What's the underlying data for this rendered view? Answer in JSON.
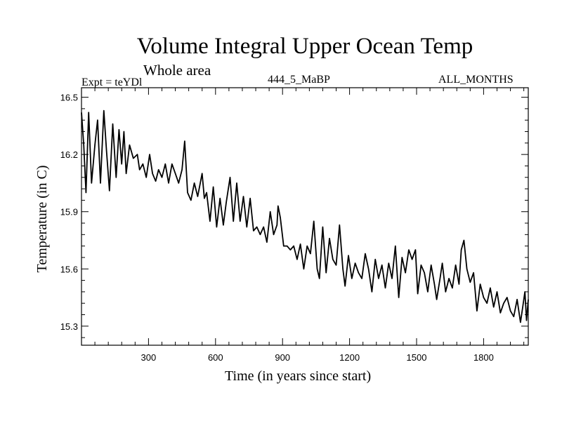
{
  "chart_data": {
    "type": "line",
    "title": "Volume Integral Upper Ocean Temp",
    "subtitle": "Whole area",
    "annotations": {
      "experiment": "Expt = teYDl",
      "run": "444_5_MaBP",
      "months": "ALL_MONTHS"
    },
    "xlabel": "Time (in years since start)",
    "ylabel": "Temperature (in C)",
    "xlim": [
      0,
      2000
    ],
    "ylim": [
      15.2,
      16.55
    ],
    "xticks": [
      300,
      600,
      900,
      1200,
      1500,
      1800
    ],
    "xtick_labels": [
      "300",
      "600",
      "900",
      "1200",
      "1500",
      "1800"
    ],
    "yticks": [
      15.3,
      15.6,
      15.9,
      16.2,
      16.5
    ],
    "ytick_labels": [
      "15.3",
      "15.6",
      "15.9",
      "16.2",
      "16.5"
    ],
    "grid": false,
    "series": [
      {
        "name": "Volume integral upper ocean temperature",
        "x": [
          0,
          10,
          20,
          32,
          45,
          60,
          72,
          85,
          100,
          112,
          125,
          140,
          155,
          168,
          180,
          190,
          200,
          215,
          232,
          250,
          260,
          275,
          290,
          305,
          318,
          332,
          345,
          360,
          375,
          390,
          405,
          420,
          435,
          450,
          462,
          475,
          490,
          505,
          520,
          540,
          550,
          560,
          575,
          590,
          605,
          620,
          635,
          648,
          665,
          680,
          695,
          710,
          725,
          740,
          755,
          770,
          785,
          800,
          815,
          830,
          845,
          860,
          875,
          880,
          890,
          905,
          920,
          935,
          950,
          965,
          980,
          995,
          1010,
          1025,
          1040,
          1055,
          1065,
          1080,
          1095,
          1110,
          1125,
          1140,
          1155,
          1170,
          1180,
          1195,
          1210,
          1225,
          1240,
          1255,
          1270,
          1285,
          1300,
          1315,
          1330,
          1345,
          1360,
          1375,
          1390,
          1405,
          1420,
          1435,
          1450,
          1465,
          1480,
          1495,
          1505,
          1520,
          1535,
          1550,
          1565,
          1580,
          1590,
          1605,
          1615,
          1630,
          1645,
          1660,
          1675,
          1690,
          1700,
          1712,
          1725,
          1740,
          1755,
          1770,
          1785,
          1800,
          1815,
          1830,
          1845,
          1860,
          1875,
          1890,
          1905,
          1920,
          1935,
          1950,
          1965,
          1975,
          1985,
          1992,
          2000
        ],
        "y": [
          16.42,
          16.25,
          16.0,
          16.42,
          16.05,
          16.25,
          16.38,
          16.05,
          16.43,
          16.22,
          16.01,
          16.36,
          16.08,
          16.33,
          16.15,
          16.32,
          16.1,
          16.25,
          16.18,
          16.2,
          16.12,
          16.15,
          16.08,
          16.2,
          16.1,
          16.06,
          16.12,
          16.08,
          16.15,
          16.05,
          16.15,
          16.1,
          16.05,
          16.12,
          16.27,
          16.0,
          15.96,
          16.05,
          15.98,
          16.1,
          15.97,
          16.0,
          15.85,
          16.03,
          15.82,
          15.97,
          15.83,
          15.95,
          16.08,
          15.85,
          16.05,
          15.85,
          15.98,
          15.82,
          15.97,
          15.8,
          15.82,
          15.78,
          15.82,
          15.74,
          15.9,
          15.78,
          15.83,
          15.93,
          15.87,
          15.72,
          15.72,
          15.7,
          15.72,
          15.65,
          15.73,
          15.6,
          15.72,
          15.68,
          15.85,
          15.6,
          15.55,
          15.82,
          15.58,
          15.76,
          15.65,
          15.62,
          15.83,
          15.6,
          15.51,
          15.67,
          15.55,
          15.63,
          15.58,
          15.55,
          15.68,
          15.6,
          15.48,
          15.65,
          15.55,
          15.62,
          15.5,
          15.63,
          15.55,
          15.72,
          15.45,
          15.66,
          15.58,
          15.7,
          15.65,
          15.7,
          15.47,
          15.62,
          15.58,
          15.48,
          15.62,
          15.52,
          15.44,
          15.55,
          15.63,
          15.48,
          15.55,
          15.5,
          15.62,
          15.52,
          15.7,
          15.75,
          15.6,
          15.53,
          15.58,
          15.38,
          15.52,
          15.45,
          15.42,
          15.5,
          15.4,
          15.48,
          15.37,
          15.42,
          15.45,
          15.38,
          15.35,
          15.44,
          15.32,
          15.4,
          15.48,
          15.33,
          15.44
        ]
      }
    ]
  }
}
